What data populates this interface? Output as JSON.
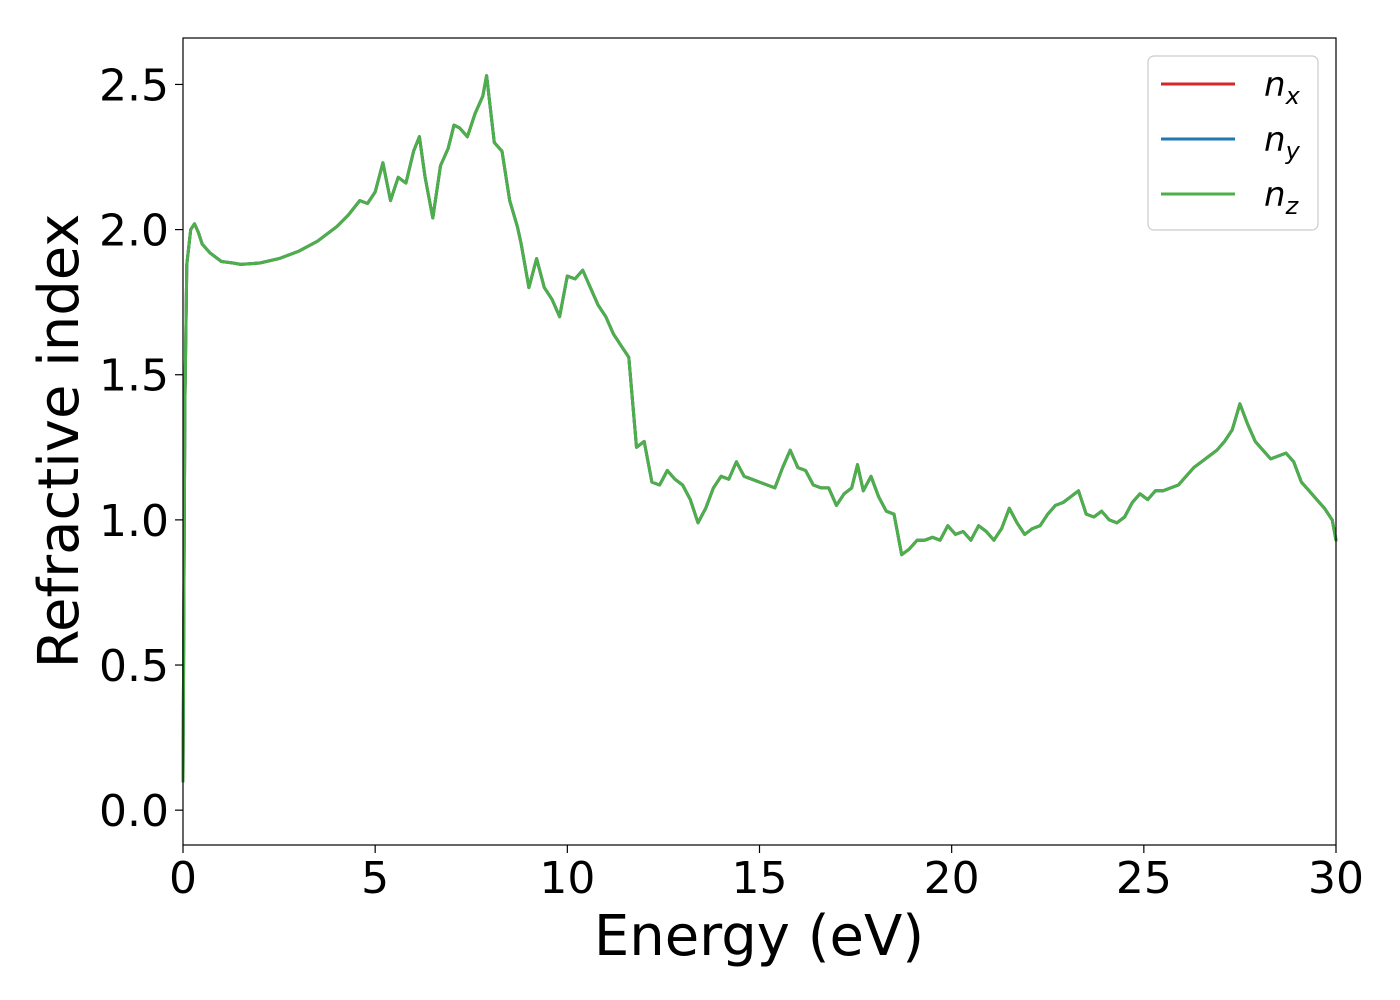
{
  "chart_data": {
    "type": "line",
    "xlabel": "Energy (eV)",
    "ylabel": "Refractive index",
    "xlim": [
      0,
      30
    ],
    "ylim": [
      -0.12,
      2.66
    ],
    "xticks": [
      0,
      5,
      10,
      15,
      20,
      25,
      30
    ],
    "xtick_labels": [
      "0",
      "5",
      "10",
      "15",
      "20",
      "25",
      "30"
    ],
    "yticks": [
      0.0,
      0.5,
      1.0,
      1.5,
      2.0,
      2.5
    ],
    "ytick_labels": [
      "0.0",
      "0.5",
      "1.0",
      "1.5",
      "2.0",
      "2.5"
    ],
    "grid": false,
    "legend_position": "top-right",
    "series": [
      {
        "name": "n",
        "subscript": "x",
        "color": "#d62728"
      },
      {
        "name": "n",
        "subscript": "y",
        "color": "#1f77b4"
      },
      {
        "name": "n",
        "subscript": "z",
        "color": "#4daf4a"
      }
    ],
    "x": [
      0,
      0.05,
      0.1,
      0.2,
      0.3,
      0.4,
      0.5,
      0.7,
      1.0,
      1.3,
      1.5,
      2.0,
      2.5,
      3.0,
      3.5,
      4.0,
      4.3,
      4.6,
      4.8,
      5.0,
      5.2,
      5.4,
      5.6,
      5.8,
      6.0,
      6.15,
      6.3,
      6.5,
      6.7,
      6.9,
      7.05,
      7.2,
      7.4,
      7.6,
      7.8,
      7.9,
      8.1,
      8.3,
      8.5,
      8.7,
      8.8,
      9.0,
      9.2,
      9.4,
      9.6,
      9.8,
      10.0,
      10.2,
      10.4,
      10.6,
      10.8,
      11.0,
      11.2,
      11.4,
      11.6,
      11.8,
      12.0,
      12.2,
      12.4,
      12.6,
      12.8,
      13.0,
      13.2,
      13.4,
      13.6,
      13.8,
      14.0,
      14.2,
      14.4,
      14.6,
      14.8,
      15.0,
      15.2,
      15.4,
      15.6,
      15.8,
      16.0,
      16.2,
      16.4,
      16.6,
      16.8,
      17.0,
      17.2,
      17.4,
      17.55,
      17.7,
      17.9,
      18.1,
      18.3,
      18.5,
      18.7,
      18.9,
      19.1,
      19.3,
      19.5,
      19.7,
      19.9,
      20.1,
      20.3,
      20.5,
      20.7,
      20.9,
      21.1,
      21.3,
      21.5,
      21.7,
      21.9,
      22.1,
      22.3,
      22.5,
      22.7,
      22.9,
      23.1,
      23.3,
      23.5,
      23.7,
      23.9,
      24.1,
      24.3,
      24.5,
      24.7,
      24.9,
      25.1,
      25.3,
      25.5,
      25.7,
      25.9,
      26.1,
      26.3,
      26.5,
      26.7,
      26.9,
      27.1,
      27.3,
      27.5,
      27.7,
      27.9,
      28.1,
      28.3,
      28.5,
      28.7,
      28.9,
      29.1,
      29.3,
      29.5,
      29.7,
      29.9,
      30.0
    ],
    "y": [
      0.1,
      1.4,
      1.88,
      2.0,
      2.02,
      1.99,
      1.95,
      1.92,
      1.89,
      1.885,
      1.88,
      1.885,
      1.9,
      1.925,
      1.96,
      2.01,
      2.05,
      2.1,
      2.09,
      2.13,
      2.23,
      2.1,
      2.18,
      2.16,
      2.27,
      2.32,
      2.18,
      2.04,
      2.22,
      2.28,
      2.36,
      2.35,
      2.32,
      2.4,
      2.46,
      2.53,
      2.3,
      2.27,
      2.1,
      2.01,
      1.95,
      1.8,
      1.9,
      1.8,
      1.76,
      1.7,
      1.84,
      1.83,
      1.86,
      1.8,
      1.74,
      1.7,
      1.64,
      1.6,
      1.56,
      1.25,
      1.27,
      1.13,
      1.12,
      1.17,
      1.14,
      1.12,
      1.07,
      0.99,
      1.04,
      1.11,
      1.15,
      1.14,
      1.2,
      1.15,
      1.14,
      1.13,
      1.12,
      1.11,
      1.18,
      1.24,
      1.18,
      1.17,
      1.12,
      1.11,
      1.11,
      1.05,
      1.09,
      1.11,
      1.19,
      1.1,
      1.15,
      1.08,
      1.03,
      1.02,
      0.88,
      0.9,
      0.93,
      0.93,
      0.94,
      0.93,
      0.98,
      0.95,
      0.96,
      0.93,
      0.98,
      0.96,
      0.93,
      0.97,
      1.04,
      0.99,
      0.95,
      0.97,
      0.98,
      1.02,
      1.05,
      1.06,
      1.08,
      1.1,
      1.02,
      1.01,
      1.03,
      1.0,
      0.99,
      1.01,
      1.06,
      1.09,
      1.07,
      1.1,
      1.1,
      1.11,
      1.12,
      1.15,
      1.18,
      1.2,
      1.22,
      1.24,
      1.27,
      1.31,
      1.4,
      1.33,
      1.27,
      1.24,
      1.21,
      1.22,
      1.23,
      1.2,
      1.13,
      1.1,
      1.07,
      1.04,
      1.0,
      0.93
    ]
  }
}
